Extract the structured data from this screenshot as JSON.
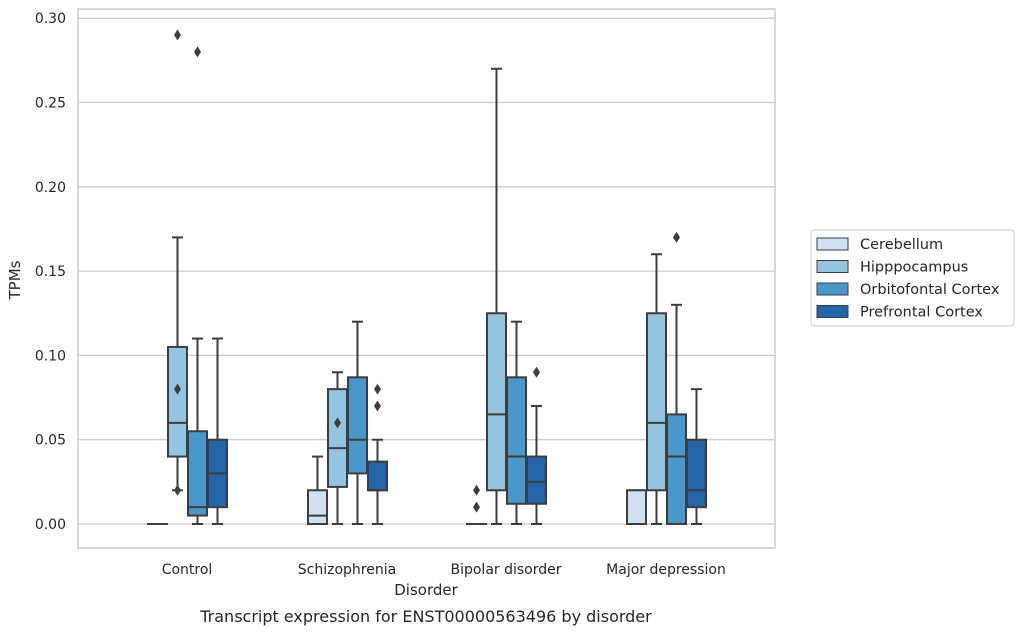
{
  "chart_data": {
    "type": "box",
    "caption": "Transcript expression for ENST00000563496 by disorder",
    "xlabel": "Disorder",
    "ylabel": "TPMs",
    "ylim": [
      -0.014,
      0.305
    ],
    "yticks": [
      "0.00",
      "0.05",
      "0.10",
      "0.15",
      "0.20",
      "0.25",
      "0.30"
    ],
    "ytick_values": [
      0,
      0.05,
      0.1,
      0.15,
      0.2,
      0.25,
      0.3
    ],
    "grid": true,
    "legend_position": "right",
    "categories": [
      "Control",
      "Schizophrenia",
      "Bipolar disorder",
      "Major depression"
    ],
    "series": [
      {
        "name": "Cerebellum",
        "color": "#d0e1f2",
        "boxes": [
          {
            "min": 0,
            "q1": 0,
            "median": 0,
            "q3": 0,
            "max": 0,
            "outliers": []
          },
          {
            "min": 0,
            "q1": 0,
            "median": 0.005,
            "q3": 0.02,
            "max": 0.04,
            "outliers": []
          },
          {
            "min": 0,
            "q1": 0,
            "median": 0,
            "q3": 0,
            "max": 0,
            "outliers": [
              0.01,
              0.02
            ]
          },
          {
            "min": 0,
            "q1": 0,
            "median": 0,
            "q3": 0.02,
            "max": 0.02,
            "outliers": []
          }
        ]
      },
      {
        "name": "Hipppocampus",
        "color": "#94c4df",
        "boxes": [
          {
            "min": 0.02,
            "q1": 0.04,
            "median": 0.06,
            "q3": 0.105,
            "max": 0.17,
            "outliers": [
              0.02,
              0.08,
              0.29
            ]
          },
          {
            "min": 0,
            "q1": 0.022,
            "median": 0.045,
            "q3": 0.08,
            "max": 0.09,
            "outliers": [
              0.06
            ]
          },
          {
            "min": 0,
            "q1": 0.02,
            "median": 0.065,
            "q3": 0.125,
            "max": 0.27,
            "outliers": []
          },
          {
            "min": 0,
            "q1": 0.02,
            "median": 0.06,
            "q3": 0.125,
            "max": 0.16,
            "outliers": []
          }
        ]
      },
      {
        "name": "Orbitofontal Cortex",
        "color": "#4a98c9",
        "boxes": [
          {
            "min": 0,
            "q1": 0.005,
            "median": 0.01,
            "q3": 0.055,
            "max": 0.11,
            "outliers": [
              0.28
            ]
          },
          {
            "min": 0,
            "q1": 0.03,
            "median": 0.05,
            "q3": 0.087,
            "max": 0.12,
            "outliers": []
          },
          {
            "min": 0,
            "q1": 0.012,
            "median": 0.04,
            "q3": 0.087,
            "max": 0.12,
            "outliers": []
          },
          {
            "min": 0,
            "q1": 0,
            "median": 0.04,
            "q3": 0.065,
            "max": 0.13,
            "outliers": [
              0.17
            ]
          }
        ]
      },
      {
        "name": "Prefrontal Cortex",
        "color": "#2464a8",
        "boxes": [
          {
            "min": 0,
            "q1": 0.01,
            "median": 0.03,
            "q3": 0.05,
            "max": 0.11,
            "outliers": []
          },
          {
            "min": 0,
            "q1": 0.02,
            "median": 0.02,
            "q3": 0.037,
            "max": 0.05,
            "outliers": [
              0.07,
              0.08
            ]
          },
          {
            "min": 0,
            "q1": 0.012,
            "median": 0.025,
            "q3": 0.04,
            "max": 0.07,
            "outliers": [
              0.09
            ]
          },
          {
            "min": 0,
            "q1": 0.01,
            "median": 0.02,
            "q3": 0.05,
            "max": 0.08,
            "outliers": []
          }
        ]
      }
    ]
  }
}
